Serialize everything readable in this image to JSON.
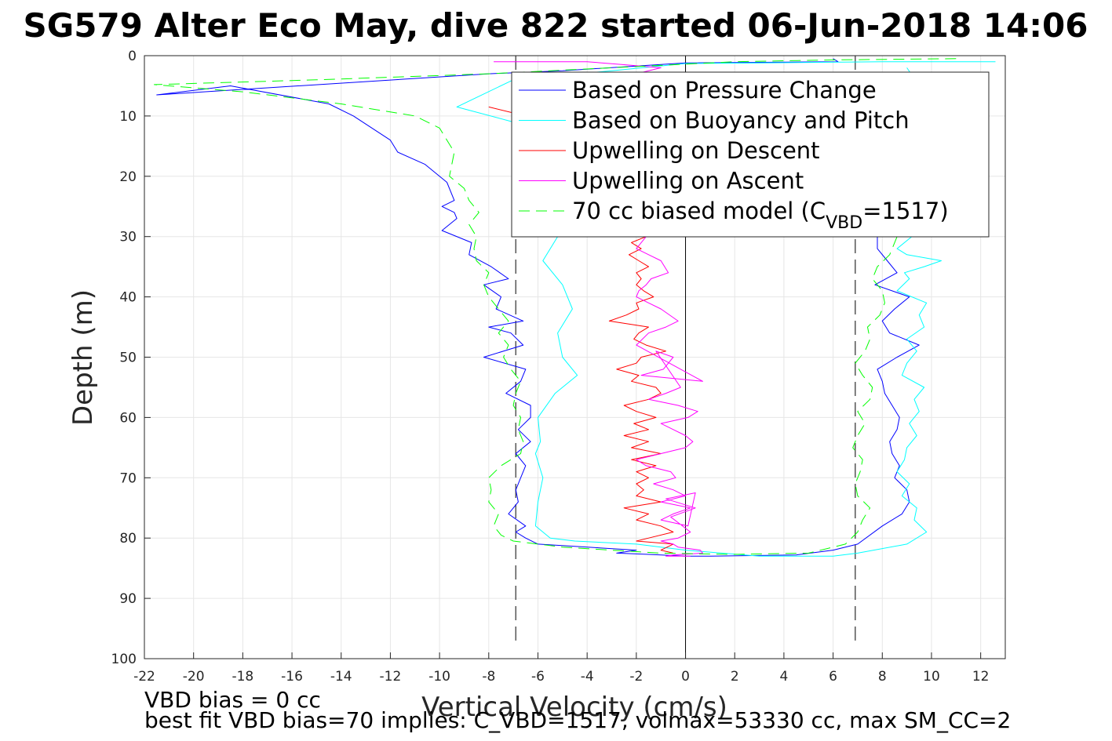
{
  "chart_data": {
    "type": "line",
    "title": "SG579 Alter Eco May, dive 822 started 06-Jun-2018 14:06",
    "xlabel": "Vertical Velocity (cm/s)",
    "ylabel": "Depth (m)",
    "xlim": [
      -22,
      13
    ],
    "ylim": [
      0,
      100
    ],
    "y_reversed": true,
    "grid": true,
    "legend_position": "top-right",
    "xticks": [
      -22,
      -20,
      -18,
      -16,
      -14,
      -12,
      -10,
      -8,
      -6,
      -4,
      -2,
      0,
      2,
      4,
      6,
      8,
      10,
      12
    ],
    "yticks": [
      0,
      10,
      20,
      30,
      40,
      50,
      60,
      70,
      80,
      90,
      100
    ],
    "reference_lines": {
      "zero_x": 0,
      "dashed_x": [
        -6.9,
        6.9
      ],
      "dashed_depth_range": [
        0,
        100
      ]
    },
    "series": [
      {
        "name": "Based on Pressure Change",
        "color": "#0000ff",
        "style": "solid",
        "x": [
          6.0,
          6.2,
          0.0,
          -5.0,
          -8.0,
          -21.5,
          -18.5,
          -14.5,
          -13.5,
          -12.0,
          -11.7,
          -10.6,
          -9.7,
          -9.4,
          -9.9,
          -9.4,
          -9.3,
          -9.9,
          -8.7,
          -8.8,
          -7.9,
          -7.2,
          -8.2,
          -7.5,
          -7.7,
          -6.6,
          -8.0,
          -7.1,
          -6.6,
          -8.2,
          -6.5,
          -6.7,
          -7.3,
          -6.3,
          -6.3,
          -6.8,
          -6.3,
          -6.9,
          -6.5,
          -6.7,
          -6.9,
          -6.8,
          -7.2,
          -6.5,
          -6.9,
          -6.5,
          -6.0,
          -2.0,
          -2.8,
          -1.5,
          0.0,
          1.0,
          4.5,
          6.0,
          7.0,
          8.0,
          8.8,
          9.1,
          9.0,
          8.5,
          8.7,
          8.4,
          8.3,
          8.6,
          8.7,
          8.4,
          8.1,
          8.0,
          7.8,
          8.6,
          9.5,
          8.3,
          8.0,
          8.5,
          9.1,
          7.7,
          8.6,
          8.2,
          7.8,
          7.8,
          7.8,
          8.5,
          7.5,
          8.5,
          7.0,
          6.5,
          6.0
        ],
        "y": [
          0.5,
          1.0,
          1.2,
          2.5,
          3.0,
          6.5,
          5.0,
          8.0,
          10.0,
          14.0,
          16.0,
          18.0,
          21.0,
          24.0,
          25.0,
          26.0,
          27.0,
          29.0,
          31.0,
          33.0,
          35.0,
          37.0,
          38.0,
          40.0,
          42.0,
          44.0,
          45.0,
          46.0,
          48.0,
          50.0,
          52.0,
          54.0,
          56.0,
          58.0,
          60.0,
          62.0,
          64.0,
          66.0,
          68.0,
          70.0,
          72.0,
          74.0,
          76.0,
          78.0,
          79.0,
          80.0,
          81.0,
          82.0,
          82.5,
          82.7,
          83.0,
          83.0,
          82.8,
          82.0,
          81.0,
          78.0,
          76.0,
          74.0,
          72.0,
          70.0,
          68.0,
          66.0,
          64.0,
          62.0,
          60.0,
          58.0,
          56.0,
          54.0,
          52.0,
          50.0,
          48.0,
          46.0,
          44.0,
          42.0,
          40.0,
          38.0,
          36.0,
          34.0,
          32.0,
          30.0,
          28.0,
          26.0,
          24.0,
          20.0,
          15.0,
          10.0,
          5.0
        ]
      },
      {
        "name": "Based on Buoyancy and Pitch",
        "color": "#00ffff",
        "style": "solid",
        "x": [
          12.6,
          8.0,
          3.0,
          0.0,
          -3.0,
          -7.0,
          -9.3,
          -7.0,
          -6.0,
          -5.8,
          -6.0,
          -5.5,
          -5.2,
          -5.8,
          -5.0,
          -4.6,
          -5.2,
          -5.0,
          -4.4,
          -5.3,
          -6.0,
          -5.9,
          -6.1,
          -5.8,
          -6.0,
          -6.1,
          -5.5,
          -4.5,
          -2.0,
          0.0,
          3.0,
          6.0,
          7.0,
          9.0,
          9.8,
          9.3,
          9.4,
          8.8,
          9.1,
          8.6,
          8.9,
          9.0,
          9.4,
          9.1,
          9.5,
          9.3,
          9.7,
          8.8,
          9.0,
          9.4,
          9.0,
          9.7,
          9.5,
          9.8,
          8.6,
          9.1,
          8.9,
          9.7,
          10.4,
          9.0,
          8.6,
          9.2,
          9.9,
          10.4,
          9.5,
          9.8,
          10.5,
          9.7,
          9.5,
          9.5,
          9.0
        ],
        "y": [
          1.0,
          1.0,
          1.2,
          1.3,
          2.5,
          4.0,
          8.5,
          11.0,
          15.0,
          20.0,
          25.0,
          28.0,
          30.0,
          34.0,
          38.0,
          42.0,
          46.0,
          50.0,
          53.0,
          56.0,
          60.0,
          64.0,
          66.0,
          70.0,
          74.0,
          78.0,
          80.0,
          80.5,
          81.0,
          82.0,
          83.0,
          83.0,
          82.5,
          81.0,
          79.0,
          77.0,
          75.0,
          73.0,
          71.0,
          69.0,
          67.0,
          65.0,
          63.0,
          61.0,
          59.0,
          57.0,
          55.0,
          53.0,
          51.0,
          49.0,
          47.0,
          45.0,
          43.0,
          41.0,
          39.0,
          37.0,
          36.0,
          35.0,
          34.0,
          33.0,
          32.0,
          30.0,
          28.0,
          26.0,
          24.0,
          20.0,
          18.0,
          15.0,
          10.0,
          5.0,
          2.0
        ]
      },
      {
        "name": "Upwelling on Descent",
        "color": "#ff0000",
        "style": "solid",
        "x": [
          -8.0,
          -6.5,
          -5.0,
          -4.0,
          -2.5,
          -2.0,
          -2.2,
          -1.6,
          -2.2,
          -1.8,
          -2.3,
          -1.9,
          -1.5,
          -2.0,
          -1.8,
          -2.0,
          -1.7,
          -1.3,
          -2.0,
          -1.9,
          -2.4,
          -3.1,
          -1.5,
          -1.9,
          -2.1,
          -1.6,
          -0.8,
          -1.8,
          -2.0,
          -2.8,
          -1.9,
          -2.2,
          -1.2,
          -1.0,
          -1.5,
          -2.5,
          -2.0,
          -1.2,
          -2.1,
          -1.5,
          -2.5,
          -1.5,
          -2.2,
          -1.0,
          -2.2,
          -1.2,
          -2.0,
          -1.5,
          -2.0,
          -1.7,
          -2.0,
          -1.0,
          -2.5,
          -1.5,
          -2.0,
          -1.0,
          -0.5,
          -1.5,
          -2.0,
          -0.5,
          -1.0,
          -0.5
        ],
        "y": [
          8.5,
          10.0,
          14.0,
          18.0,
          22.0,
          25.0,
          29.0,
          30.0,
          31.0,
          32.0,
          33.0,
          34.0,
          35.0,
          36.0,
          37.0,
          38.0,
          39.0,
          40.0,
          41.0,
          42.0,
          43.0,
          44.0,
          45.0,
          46.0,
          47.0,
          48.0,
          49.0,
          50.0,
          51.0,
          52.0,
          53.0,
          54.0,
          55.0,
          56.0,
          57.0,
          58.0,
          59.0,
          60.0,
          61.0,
          62.0,
          63.0,
          64.0,
          65.0,
          66.0,
          67.0,
          68.0,
          69.0,
          70.0,
          71.0,
          72.0,
          73.0,
          74.0,
          75.0,
          76.0,
          77.0,
          78.0,
          79.0,
          80.0,
          80.5,
          81.0,
          82.0,
          82.5
        ]
      },
      {
        "name": "Upwelling on Ascent",
        "color": "#ff00ff",
        "style": "solid",
        "x": [
          -7.8,
          -4.0,
          -2.5,
          -1.0,
          -2.0,
          -1.6,
          -2.0,
          -1.5,
          -1.0,
          -0.7,
          -1.4,
          -1.6,
          -1.9,
          -2.0,
          -1.5,
          -1.0,
          -0.3,
          -0.8,
          -1.5,
          -2.0,
          0.7,
          -1.8,
          -0.9,
          -0.5,
          -1.2,
          -0.2,
          -0.8,
          -1.5,
          -0.3,
          0.5,
          0.1,
          -1.0,
          -0.5,
          0.0,
          0.3,
          0.0,
          -1.0,
          -2.0,
          -1.6,
          -0.6,
          -0.4,
          -1.3,
          -0.5,
          0.0,
          -1.0,
          0.2,
          -0.5,
          -1.0,
          0.1,
          0.4,
          -0.8,
          0.4,
          -0.6,
          0.2,
          -0.3,
          -1.0,
          -0.5,
          -0.3,
          0.6,
          0.7,
          -0.5,
          -0.8,
          0.2
        ],
        "y": [
          1.0,
          1.0,
          1.5,
          2.0,
          3.0,
          30.0,
          32.0,
          33.0,
          34.0,
          36.0,
          37.0,
          38.0,
          39.0,
          40.0,
          41.0,
          42.0,
          44.0,
          45.0,
          46.0,
          48.0,
          54.0,
          53.0,
          52.0,
          50.0,
          49.0,
          55.0,
          56.0,
          57.0,
          58.0,
          59.0,
          60.0,
          61.0,
          62.0,
          63.0,
          64.0,
          65.0,
          66.0,
          67.0,
          68.0,
          69.0,
          70.0,
          71.0,
          72.0,
          73.0,
          74.0,
          75.0,
          76.0,
          77.0,
          78.0,
          72.5,
          73.5,
          75.0,
          76.5,
          79.0,
          80.0,
          80.5,
          81.0,
          81.5,
          82.0,
          82.5,
          82.8,
          83.0,
          83.0
        ]
      },
      {
        "name": "70 cc biased model (C_VBD=1517)",
        "color": "#00ff00",
        "style": "dashed",
        "x": [
          11.0,
          6.0,
          2.0,
          -3.0,
          -8.0,
          -15.0,
          -21.6,
          -18.0,
          -14.0,
          -11.0,
          -10.0,
          -9.7,
          -9.4,
          -9.5,
          -9.6,
          -9.0,
          -8.8,
          -8.4,
          -8.8,
          -8.5,
          -8.6,
          -8.5,
          -8.0,
          -8.2,
          -8.0,
          -7.6,
          -7.2,
          -7.6,
          -7.2,
          -7.4,
          -7.1,
          -6.7,
          -6.9,
          -7.0,
          -6.7,
          -6.8,
          -6.6,
          -6.7,
          -7.5,
          -8.0,
          -7.9,
          -8.0,
          -7.6,
          -7.8,
          -7.5,
          -7.0,
          -5.0,
          -3.0,
          -1.0,
          2.0,
          5.0,
          6.5,
          7.0,
          7.2,
          7.5,
          7.0,
          6.9,
          7.1,
          7.2,
          6.8,
          7.0,
          7.3,
          7.0,
          7.5,
          7.6,
          7.2,
          6.9,
          7.3,
          7.5,
          7.4,
          7.9,
          8.1,
          8.0,
          7.6,
          7.8,
          8.3,
          8.5,
          8.8,
          9.0,
          8.5,
          8.0,
          8.5,
          9.0
        ],
        "y": [
          0.5,
          0.7,
          1.0,
          2.0,
          3.0,
          4.0,
          4.8,
          6.0,
          8.0,
          10.0,
          12.0,
          14.0,
          16.0,
          18.0,
          20.0,
          22.0,
          24.0,
          26.0,
          28.0,
          30.0,
          32.0,
          34.0,
          36.0,
          38.0,
          40.0,
          42.0,
          44.0,
          46.0,
          48.0,
          50.0,
          52.0,
          54.0,
          56.0,
          58.0,
          60.0,
          62.0,
          64.0,
          66.0,
          68.0,
          70.0,
          72.0,
          74.0,
          76.0,
          78.0,
          79.5,
          80.5,
          81.5,
          82.0,
          82.5,
          82.7,
          82.5,
          81.0,
          79.0,
          77.0,
          75.0,
          73.0,
          71.0,
          69.0,
          67.0,
          65.0,
          63.0,
          61.0,
          59.0,
          57.0,
          55.0,
          53.0,
          51.0,
          49.0,
          47.0,
          45.0,
          43.0,
          41.0,
          39.0,
          37.0,
          35.0,
          33.0,
          31.0,
          28.0,
          25.0,
          20.0,
          15.0,
          10.0,
          5.0
        ]
      }
    ],
    "legend": [
      {
        "label": "Based on Pressure Change",
        "color": "#0000ff",
        "style": "solid"
      },
      {
        "label": "Based on Buoyancy and Pitch",
        "color": "#00ffff",
        "style": "solid"
      },
      {
        "label": "Upwelling on Descent",
        "color": "#ff0000",
        "style": "solid"
      },
      {
        "label": "Upwelling on Ascent",
        "color": "#ff00ff",
        "style": "solid"
      },
      {
        "label_main": "70 cc biased model (C",
        "label_sub": "VBD",
        "label_tail": "=1517)",
        "color": "#00ff00",
        "style": "dashed"
      }
    ],
    "annotations": [
      "VBD bias = 0 cc",
      "best fit VBD bias=70 implies: C_VBD=1517, volmax=53330 cc, max SM_CC=2"
    ]
  }
}
